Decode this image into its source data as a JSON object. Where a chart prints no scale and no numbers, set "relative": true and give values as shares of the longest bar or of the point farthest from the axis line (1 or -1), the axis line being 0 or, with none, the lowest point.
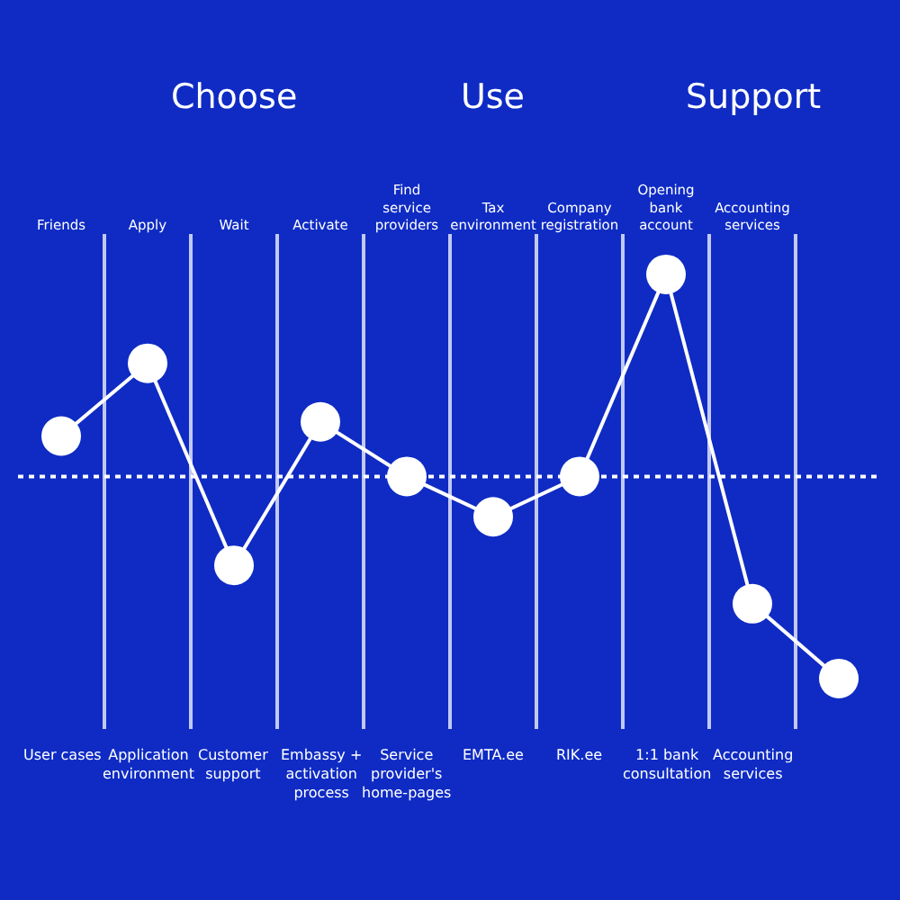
{
  "chart_data": {
    "type": "line",
    "relative": true,
    "categories": [
      "Friends",
      "Apply",
      "Wait",
      "Activate",
      "Find service providers",
      "Tax environment",
      "Company registration",
      "Opening bank account",
      "Accounting services",
      null
    ],
    "series": [
      {
        "color": "#ffffff",
        "values": [
          0.2,
          0.56,
          -0.44,
          0.27,
          0,
          -0.2,
          0,
          1,
          -0.63,
          -1
        ]
      }
    ],
    "marker": "circle",
    "line_style": "solid",
    "grid": "x",
    "ref_lines": [
      {
        "axis": "y",
        "value": 0,
        "color": "#ffffff",
        "line_style": "dotted"
      }
    ],
    "annotations": [
      "Choose",
      "Use",
      "Support",
      "User cases",
      "Application environment",
      "Customer support",
      "Embassy + activation process",
      "Service provider's home-pages",
      "EMTA.ee",
      "RIK.ee",
      "1:1 bank consultation",
      "Accounting services"
    ]
  }
}
